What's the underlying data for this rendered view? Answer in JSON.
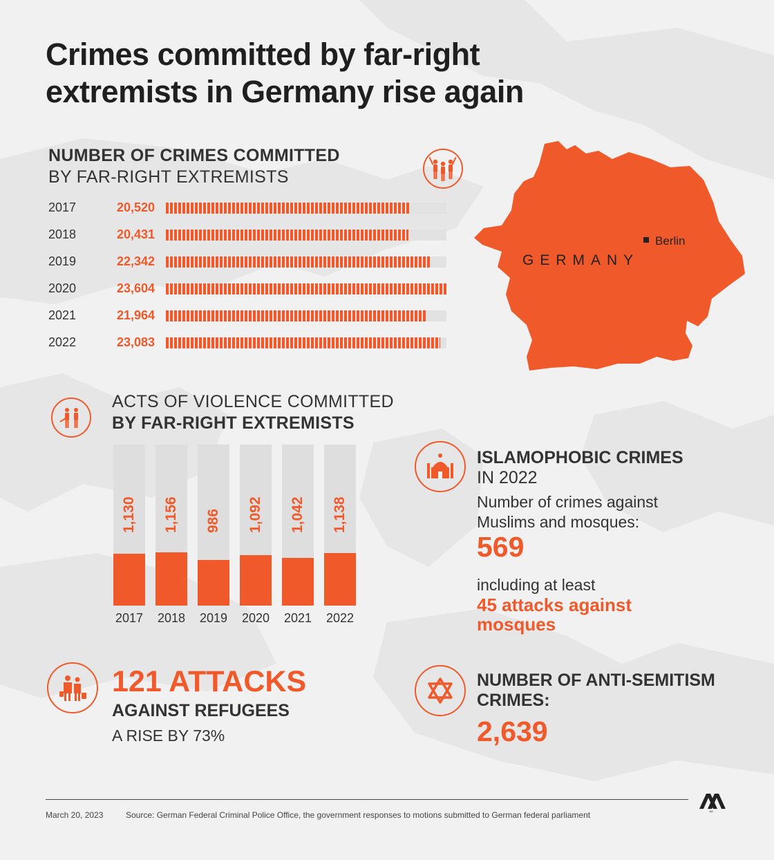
{
  "title": "Crimes committed by far-right extremists in Germany rise again",
  "colors": {
    "accent": "#f0592a",
    "background": "#f1f1f1",
    "bar_track": "#dedede"
  },
  "crimes_section": {
    "heading_bold": "NUMBER OF CRIMES COMMITTED",
    "heading_regular": "BY FAR-RIGHT EXTREMISTS",
    "icon": "crowd-protest-icon"
  },
  "map": {
    "country_label": "GERMANY",
    "capital_label": "Berlin"
  },
  "violence_section": {
    "heading_regular": "ACTS OF VIOLENCE COMMITTED",
    "heading_bold": "BY FAR-RIGHT EXTREMISTS",
    "icon": "violence-icon"
  },
  "islamophobia": {
    "icon": "mosque-icon",
    "heading_bold": "ISLAMOPHOBIC CRIMES",
    "heading_regular": "IN 2022",
    "desc_line1": "Number of crimes against",
    "desc_line2": "Muslims and mosques:",
    "value": "569",
    "sub_line": "including at least",
    "attacks_line1": "45 attacks against",
    "attacks_line2": "mosques"
  },
  "refugees": {
    "icon": "refugees-icon",
    "headline": "121 ATTACKS",
    "subhead": "AGAINST REFUGEES",
    "rise": "A RISE BY 73%"
  },
  "antisemitism": {
    "icon": "star-of-david-icon",
    "heading_line1": "NUMBER OF ANTI-SEMITISM",
    "heading_line2": "CRIMES:",
    "value": "2,639"
  },
  "footer": {
    "date": "March 20, 2023",
    "source": "Source: German Federal Criminal Police Office, the government responses to motions submitted to German federal parliament",
    "logo": "AA"
  },
  "chart_data": [
    {
      "type": "bar",
      "orientation": "horizontal",
      "title": "NUMBER OF CRIMES COMMITTED BY FAR-RIGHT EXTREMISTS",
      "categories": [
        "2017",
        "2018",
        "2019",
        "2020",
        "2021",
        "2022"
      ],
      "values": [
        20520,
        20431,
        22342,
        23604,
        21964,
        23083
      ],
      "value_labels": [
        "20,520",
        "20,431",
        "22,342",
        "23,604",
        "21,964",
        "23,083"
      ],
      "xlim": [
        0,
        23604
      ]
    },
    {
      "type": "bar",
      "orientation": "vertical",
      "title": "ACTS OF VIOLENCE COMMITTED BY FAR-RIGHT EXTREMISTS",
      "categories": [
        "2017",
        "2018",
        "2019",
        "2020",
        "2021",
        "2022"
      ],
      "values": [
        1130,
        1156,
        986,
        1092,
        1042,
        1138
      ],
      "value_labels": [
        "1,130",
        "1,156",
        "986",
        "1,092",
        "1,042",
        "1,138"
      ],
      "ylim": [
        0,
        3500
      ]
    }
  ]
}
